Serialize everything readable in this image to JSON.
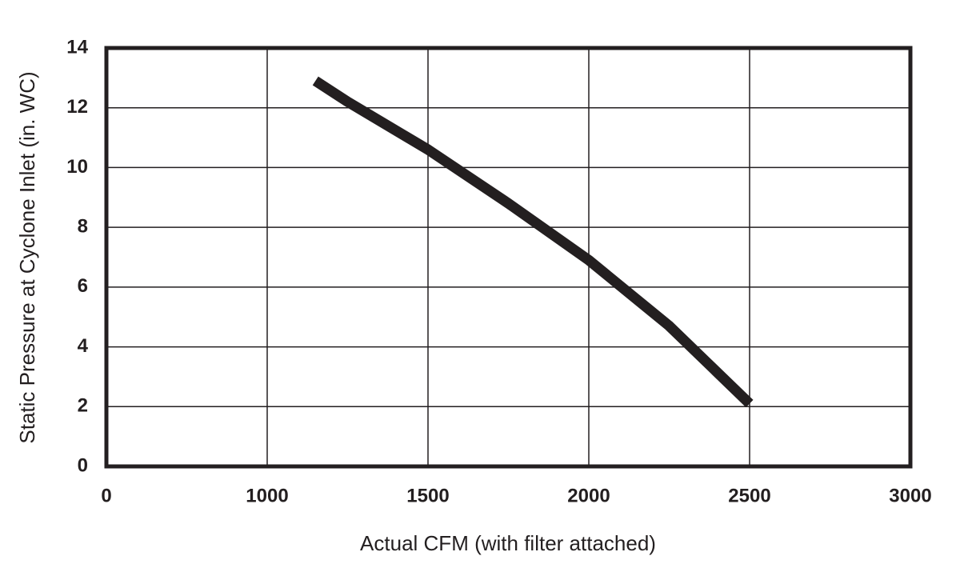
{
  "chart_data": {
    "type": "line",
    "x_label": "Actual CFM (with filter attached)",
    "y_label": "Static Pressure at Cyclone Inlet (in. WC)",
    "series": [
      {
        "color": "#231f20",
        "x": [
          1150,
          1250,
          1500,
          1750,
          2000,
          2250,
          2500
        ],
        "values": [
          12.9,
          12.2,
          10.6,
          8.8,
          6.9,
          4.7,
          2.1
        ]
      }
    ],
    "xlim": [
      0,
      3000
    ],
    "xticks": [
      0,
      1000,
      1500,
      2000,
      2500,
      3000
    ],
    "ylim": [
      0,
      14
    ],
    "yticks": [
      0,
      2,
      4,
      6,
      8,
      10,
      12,
      14
    ],
    "grid": true
  }
}
